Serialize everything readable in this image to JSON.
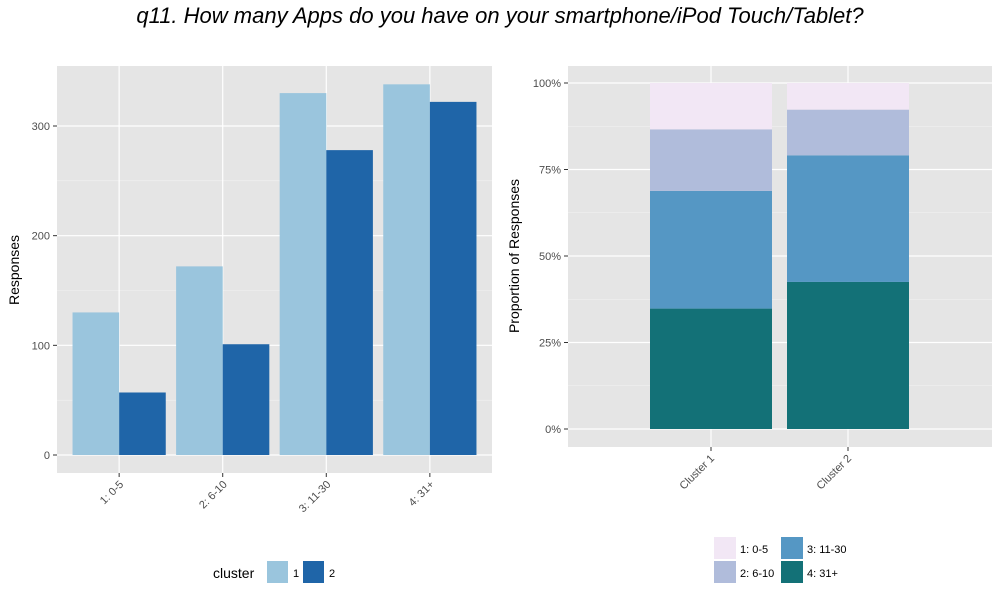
{
  "title": "q11. How many Apps do you have on your smartphone/iPod Touch/Tablet?",
  "chart_data": [
    {
      "type": "bar",
      "ylabel": "Responses",
      "xlabel": "",
      "categories": [
        "1: 0-5",
        "2: 6-10",
        "3: 11-30",
        "4: 31+"
      ],
      "series": [
        {
          "name": "1",
          "values": [
            130,
            172,
            330,
            338
          ],
          "color": "#9ac5dd"
        },
        {
          "name": "2",
          "values": [
            57,
            101,
            278,
            322
          ],
          "color": "#1f65a8"
        }
      ],
      "ylim": [
        0,
        350
      ],
      "yticks": [
        0,
        100,
        200,
        300
      ],
      "grid": true,
      "legend": {
        "title": "cluster",
        "position": "bottom"
      }
    },
    {
      "type": "bar",
      "stacked": true,
      "ylabel": "Proportion of Responses",
      "xlabel": "",
      "categories": [
        "Cluster 1",
        "Cluster 2"
      ],
      "series": [
        {
          "name": "4: 31+",
          "values": [
            0.348,
            0.425
          ],
          "color": "#137177"
        },
        {
          "name": "3: 11-30",
          "values": [
            0.34,
            0.366
          ],
          "color": "#5597c4"
        },
        {
          "name": "2: 6-10",
          "values": [
            0.178,
            0.132
          ],
          "color": "#b0bcdb"
        },
        {
          "name": "1: 0-5",
          "values": [
            0.134,
            0.077
          ],
          "color": "#f2e7f5"
        }
      ],
      "ylim": [
        0,
        1
      ],
      "yticks": [
        "0%",
        "25%",
        "50%",
        "75%",
        "100%"
      ],
      "grid": true,
      "legend": {
        "position": "bottom",
        "entries": [
          "1: 0-5",
          "2: 6-10",
          "3: 11-30",
          "4: 31+"
        ]
      }
    }
  ]
}
